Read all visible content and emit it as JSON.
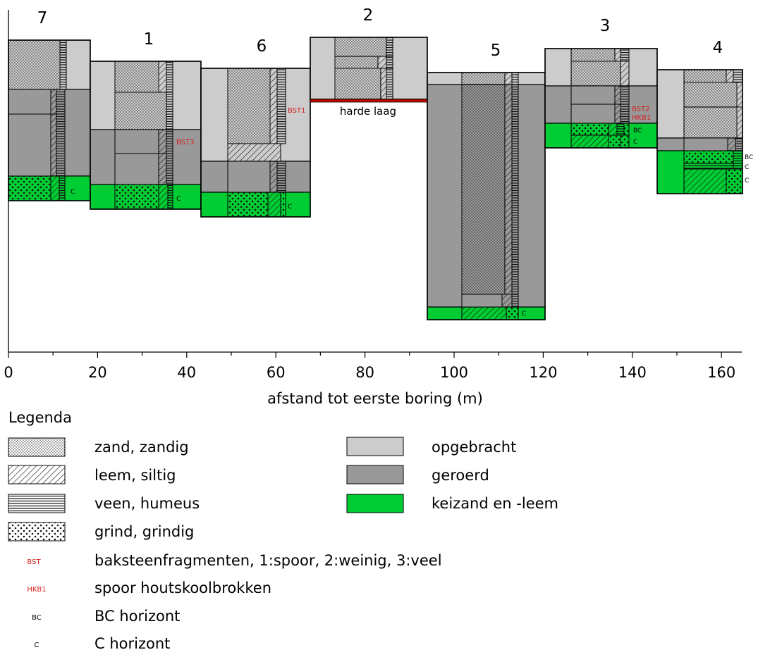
{
  "x_axis": {
    "label": "afstand tot eerste boring (m)",
    "ticks": [
      {
        "value": 0,
        "label": "0"
      },
      {
        "value": 20,
        "label": "20"
      },
      {
        "value": 40,
        "label": "40"
      },
      {
        "value": 60,
        "label": "60"
      },
      {
        "value": 80,
        "label": "80"
      },
      {
        "value": 100,
        "label": "100"
      },
      {
        "value": 120,
        "label": "120"
      },
      {
        "value": 140,
        "label": "140"
      },
      {
        "value": 160,
        "label": "160"
      }
    ]
  },
  "colors": {
    "opgebracht": "#cccccc",
    "geroerd": "#999999",
    "keizand": "#00cc33",
    "marker_red": "#d42020",
    "hard_layer": "#cc0000"
  },
  "borings": [
    {
      "id": "7",
      "x0": 0,
      "x1": 18.5
    },
    {
      "id": "1",
      "x0": 18.5,
      "x1": 43
    },
    {
      "id": "6",
      "x0": 43,
      "x1": 67.5
    },
    {
      "id": "2",
      "x0": 67.5,
      "x1": 94
    },
    {
      "id": "5",
      "x0": 94,
      "x1": 120.5
    },
    {
      "id": "3",
      "x0": 120.5,
      "x1": 145.5
    },
    {
      "id": "4",
      "x0": 145.5,
      "x1": 164.5
    }
  ],
  "annotations": {
    "harde_laag": "harde laag",
    "bst1": "BST1",
    "bst2": "BST2",
    "bst3": "BST3",
    "hkb1": "HKB1",
    "bc": "BC",
    "c": "C"
  },
  "legend": {
    "title": "Legenda",
    "items": [
      {
        "key": "zand",
        "label": "zand, zandig"
      },
      {
        "key": "leem",
        "label": "leem, siltig"
      },
      {
        "key": "veen",
        "label": "veen, humeus"
      },
      {
        "key": "grind",
        "label": "grind, grindig"
      },
      {
        "key": "bst",
        "symbol": "BST",
        "label": "baksteenfragmenten, 1:spoor, 2:weinig, 3:veel"
      },
      {
        "key": "hkb",
        "symbol": "HKB1",
        "label": "spoor houtskoolbrokken"
      },
      {
        "key": "bc",
        "symbol": "BC",
        "label": "BC horizont"
      },
      {
        "key": "c",
        "symbol": "C",
        "label": "C horizont"
      },
      {
        "key": "opgebracht",
        "label": "opgebracht"
      },
      {
        "key": "geroerd",
        "label": "geroerd"
      },
      {
        "key": "keizand",
        "label": "keizand en -leem"
      }
    ]
  }
}
